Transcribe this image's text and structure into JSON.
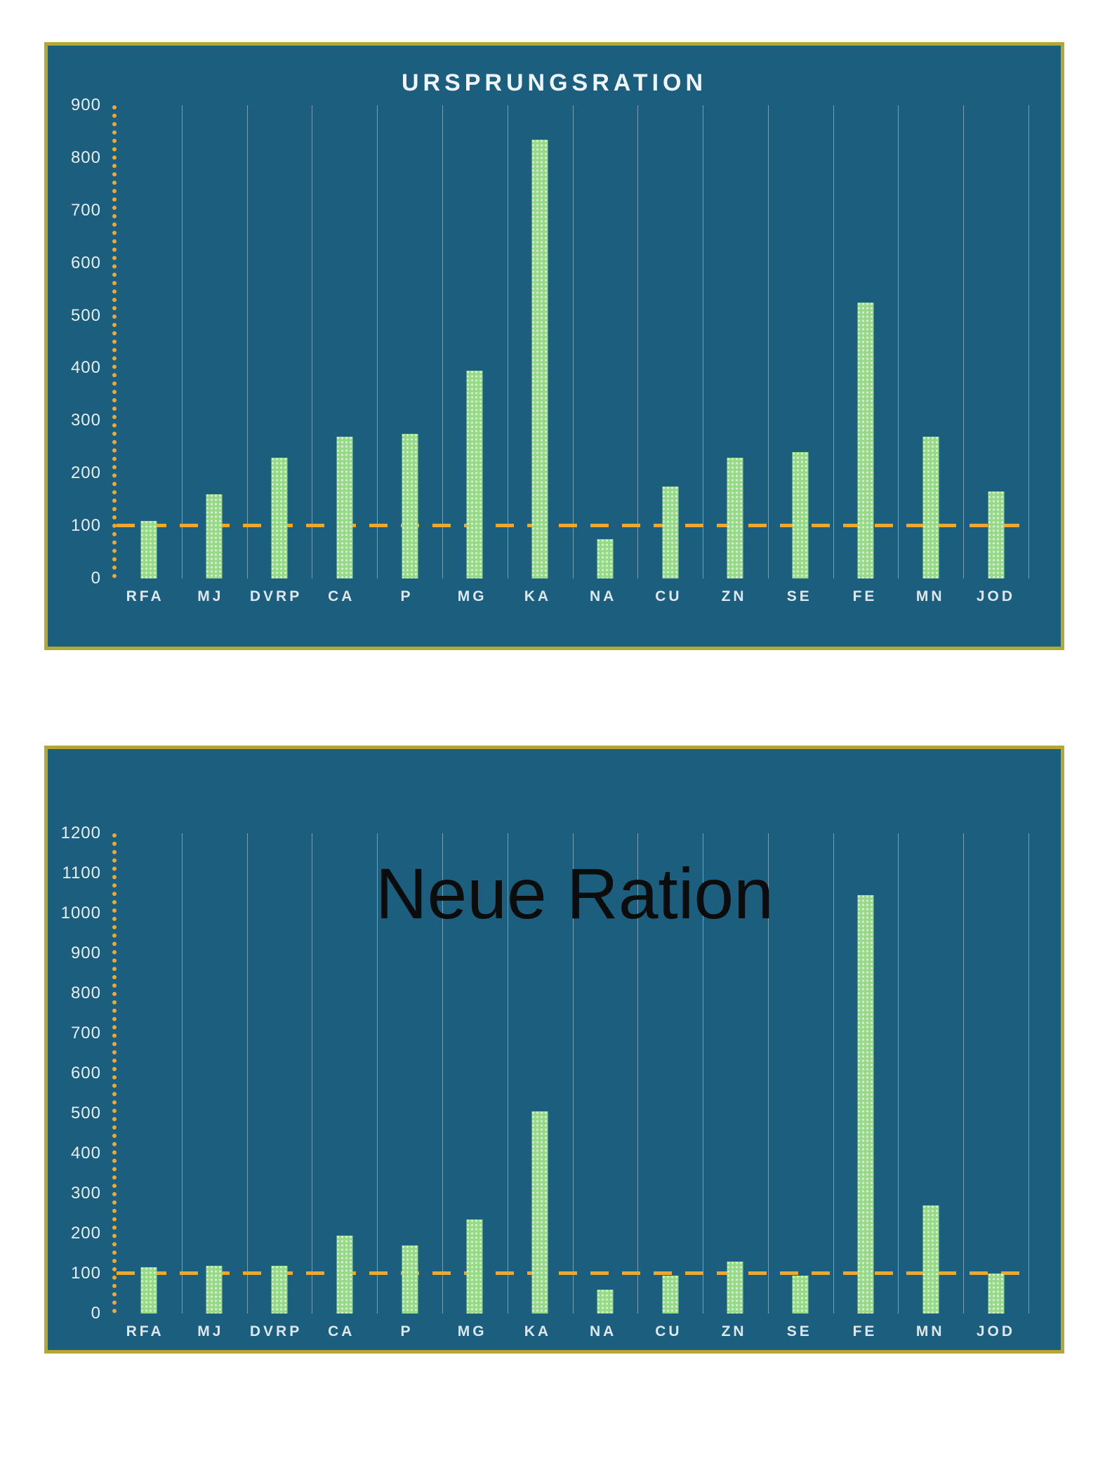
{
  "page": {
    "background": "#ffffff"
  },
  "charts": [
    {
      "id": "ursprungsration",
      "panel_bg": "#1b5e7e",
      "border_color": "#b5a733",
      "bar_color": "#96da88",
      "axis_color": "#e9a93c",
      "gridline_color": "rgba(210,225,232,0.5)",
      "refline_color": "#efa82e",
      "refline_value": 100,
      "chart_data": {
        "type": "bar",
        "title": "URSPRUNGSRATION",
        "categories": [
          "RFA",
          "MJ",
          "DVRP",
          "CA",
          "P",
          "MG",
          "KA",
          "NA",
          "CU",
          "ZN",
          "SE",
          "FE",
          "MN",
          "JOD"
        ],
        "values": [
          110,
          160,
          230,
          270,
          275,
          395,
          835,
          75,
          175,
          230,
          240,
          525,
          270,
          165
        ],
        "xlabel": "",
        "ylabel": "",
        "ylim": [
          0,
          900
        ],
        "ytick_step": 100,
        "grid": "vertical",
        "legend": "none",
        "reference_line": 100
      }
    },
    {
      "id": "neue-ration",
      "overlay_label": "Neue Ration",
      "panel_bg": "#1b5e7e",
      "border_color": "#b5a733",
      "bar_color": "#96da88",
      "axis_color": "#e9a93c",
      "gridline_color": "rgba(210,225,232,0.5)",
      "refline_color": "#efa82e",
      "refline_value": 100,
      "chart_data": {
        "type": "bar",
        "title": "",
        "categories": [
          "RFA",
          "MJ",
          "DVRP",
          "CA",
          "P",
          "MG",
          "KA",
          "NA",
          "CU",
          "ZN",
          "SE",
          "FE",
          "MN",
          "JOD"
        ],
        "values": [
          115,
          120,
          120,
          195,
          170,
          235,
          505,
          60,
          95,
          130,
          95,
          1045,
          270,
          100
        ],
        "xlabel": "",
        "ylabel": "",
        "ylim": [
          0,
          1200
        ],
        "ytick_step": 100,
        "grid": "vertical",
        "legend": "none",
        "reference_line": 100
      }
    }
  ]
}
